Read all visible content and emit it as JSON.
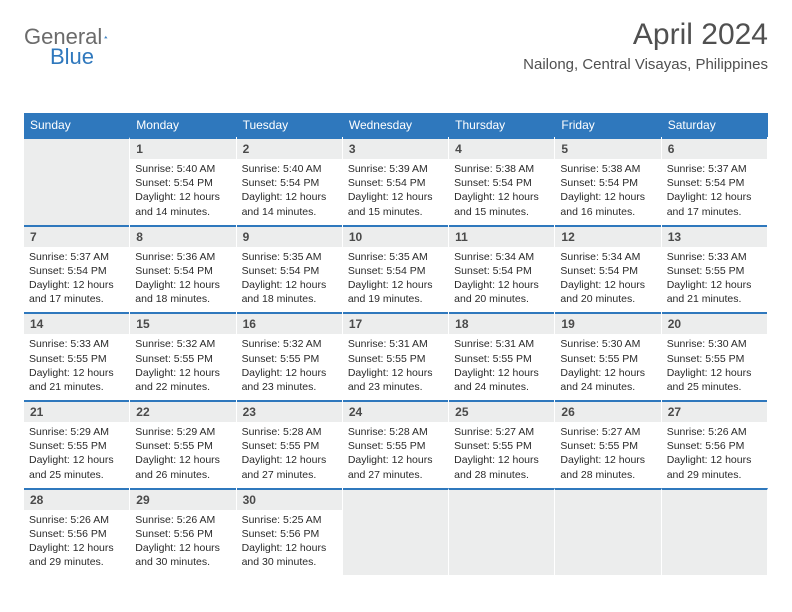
{
  "logo": {
    "general": "General",
    "blue": "Blue",
    "accent_color": "#2f78bd"
  },
  "header": {
    "month_title": "April 2024",
    "location": "Nailong, Central Visayas, Philippines"
  },
  "calendar": {
    "days_of_week": [
      "Sunday",
      "Monday",
      "Tuesday",
      "Wednesday",
      "Thursday",
      "Friday",
      "Saturday"
    ],
    "header_bg": "#2f78bd",
    "header_fg": "#ffffff",
    "daynum_bg": "#eceded",
    "daynum_border": "#2f78bd",
    "text_color": "#2a2a2a",
    "leading_blanks": 1,
    "days": [
      {
        "num": "1",
        "sunrise": "5:40 AM",
        "sunset": "5:54 PM",
        "daylight": "12 hours and 14 minutes."
      },
      {
        "num": "2",
        "sunrise": "5:40 AM",
        "sunset": "5:54 PM",
        "daylight": "12 hours and 14 minutes."
      },
      {
        "num": "3",
        "sunrise": "5:39 AM",
        "sunset": "5:54 PM",
        "daylight": "12 hours and 15 minutes."
      },
      {
        "num": "4",
        "sunrise": "5:38 AM",
        "sunset": "5:54 PM",
        "daylight": "12 hours and 15 minutes."
      },
      {
        "num": "5",
        "sunrise": "5:38 AM",
        "sunset": "5:54 PM",
        "daylight": "12 hours and 16 minutes."
      },
      {
        "num": "6",
        "sunrise": "5:37 AM",
        "sunset": "5:54 PM",
        "daylight": "12 hours and 17 minutes."
      },
      {
        "num": "7",
        "sunrise": "5:37 AM",
        "sunset": "5:54 PM",
        "daylight": "12 hours and 17 minutes."
      },
      {
        "num": "8",
        "sunrise": "5:36 AM",
        "sunset": "5:54 PM",
        "daylight": "12 hours and 18 minutes."
      },
      {
        "num": "9",
        "sunrise": "5:35 AM",
        "sunset": "5:54 PM",
        "daylight": "12 hours and 18 minutes."
      },
      {
        "num": "10",
        "sunrise": "5:35 AM",
        "sunset": "5:54 PM",
        "daylight": "12 hours and 19 minutes."
      },
      {
        "num": "11",
        "sunrise": "5:34 AM",
        "sunset": "5:54 PM",
        "daylight": "12 hours and 20 minutes."
      },
      {
        "num": "12",
        "sunrise": "5:34 AM",
        "sunset": "5:54 PM",
        "daylight": "12 hours and 20 minutes."
      },
      {
        "num": "13",
        "sunrise": "5:33 AM",
        "sunset": "5:55 PM",
        "daylight": "12 hours and 21 minutes."
      },
      {
        "num": "14",
        "sunrise": "5:33 AM",
        "sunset": "5:55 PM",
        "daylight": "12 hours and 21 minutes."
      },
      {
        "num": "15",
        "sunrise": "5:32 AM",
        "sunset": "5:55 PM",
        "daylight": "12 hours and 22 minutes."
      },
      {
        "num": "16",
        "sunrise": "5:32 AM",
        "sunset": "5:55 PM",
        "daylight": "12 hours and 23 minutes."
      },
      {
        "num": "17",
        "sunrise": "5:31 AM",
        "sunset": "5:55 PM",
        "daylight": "12 hours and 23 minutes."
      },
      {
        "num": "18",
        "sunrise": "5:31 AM",
        "sunset": "5:55 PM",
        "daylight": "12 hours and 24 minutes."
      },
      {
        "num": "19",
        "sunrise": "5:30 AM",
        "sunset": "5:55 PM",
        "daylight": "12 hours and 24 minutes."
      },
      {
        "num": "20",
        "sunrise": "5:30 AM",
        "sunset": "5:55 PM",
        "daylight": "12 hours and 25 minutes."
      },
      {
        "num": "21",
        "sunrise": "5:29 AM",
        "sunset": "5:55 PM",
        "daylight": "12 hours and 25 minutes."
      },
      {
        "num": "22",
        "sunrise": "5:29 AM",
        "sunset": "5:55 PM",
        "daylight": "12 hours and 26 minutes."
      },
      {
        "num": "23",
        "sunrise": "5:28 AM",
        "sunset": "5:55 PM",
        "daylight": "12 hours and 27 minutes."
      },
      {
        "num": "24",
        "sunrise": "5:28 AM",
        "sunset": "5:55 PM",
        "daylight": "12 hours and 27 minutes."
      },
      {
        "num": "25",
        "sunrise": "5:27 AM",
        "sunset": "5:55 PM",
        "daylight": "12 hours and 28 minutes."
      },
      {
        "num": "26",
        "sunrise": "5:27 AM",
        "sunset": "5:55 PM",
        "daylight": "12 hours and 28 minutes."
      },
      {
        "num": "27",
        "sunrise": "5:26 AM",
        "sunset": "5:56 PM",
        "daylight": "12 hours and 29 minutes."
      },
      {
        "num": "28",
        "sunrise": "5:26 AM",
        "sunset": "5:56 PM",
        "daylight": "12 hours and 29 minutes."
      },
      {
        "num": "29",
        "sunrise": "5:26 AM",
        "sunset": "5:56 PM",
        "daylight": "12 hours and 30 minutes."
      },
      {
        "num": "30",
        "sunrise": "5:25 AM",
        "sunset": "5:56 PM",
        "daylight": "12 hours and 30 minutes."
      }
    ],
    "labels": {
      "sunrise": "Sunrise:",
      "sunset": "Sunset:",
      "daylight": "Daylight:"
    }
  }
}
